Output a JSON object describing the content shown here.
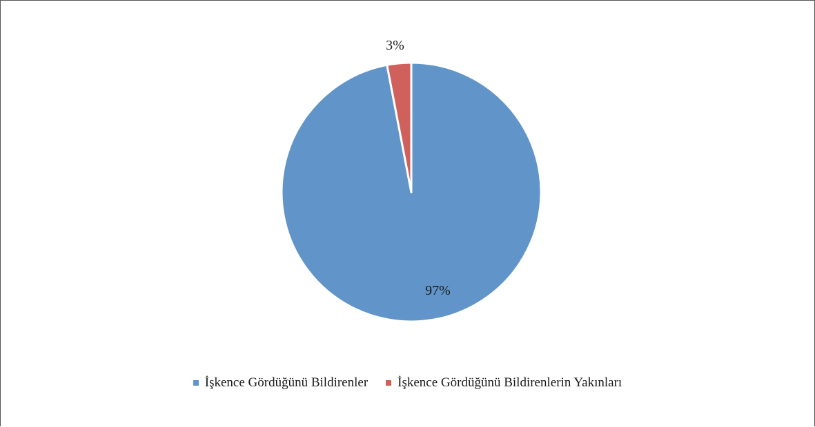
{
  "chart_data": {
    "type": "pie",
    "title": "",
    "legend_position": "bottom",
    "slices": [
      {
        "label": "İşkence Gördüğünü Bildirenler",
        "value": 97,
        "display": "97%",
        "color": "#6194c8"
      },
      {
        "label": "İşkence Gördüğünü Bildirenlerin Yakınları",
        "value": 3,
        "display": "3%",
        "color": "#d0605c"
      }
    ]
  }
}
